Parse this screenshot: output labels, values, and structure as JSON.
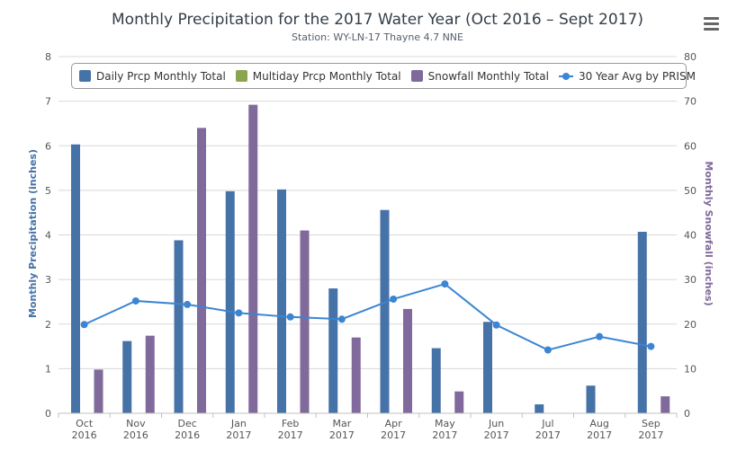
{
  "header": {
    "title": "Monthly Precipitation for the 2017 Water Year (Oct 2016 – Sept 2017)",
    "subtitle": "Station: WY-LN-17 Thayne 4.7 NNE",
    "menu_icon": "hamburger-menu-icon"
  },
  "colors": {
    "daily": "#4572a7",
    "multiday": "#89a54e",
    "snowfall": "#80699b",
    "avg": "#3b85d3",
    "left_axis_title": "#4572a7",
    "right_axis_title": "#80699b",
    "grid": "#d8d8d8"
  },
  "chart_data": {
    "type": "bar",
    "title": "Monthly Precipitation for the 2017 Water Year (Oct 2016 – Sept 2017)",
    "subtitle": "Station: WY-LN-17 Thayne 4.7 NNE",
    "categories": [
      [
        "Oct",
        "2016"
      ],
      [
        "Nov",
        "2016"
      ],
      [
        "Dec",
        "2016"
      ],
      [
        "Jan",
        "2017"
      ],
      [
        "Feb",
        "2017"
      ],
      [
        "Mar",
        "2017"
      ],
      [
        "Apr",
        "2017"
      ],
      [
        "May",
        "2017"
      ],
      [
        "Jun",
        "2017"
      ],
      [
        "Jul",
        "2017"
      ],
      [
        "Aug",
        "2017"
      ],
      [
        "Sep",
        "2017"
      ]
    ],
    "ylabel": "Monthly Precipitation (inches)",
    "ylim": [
      0,
      8
    ],
    "yticks": [
      0,
      1,
      2,
      3,
      4,
      5,
      6,
      7,
      8
    ],
    "y2label": "Monthly Snowfall (inches)",
    "y2lim": [
      0,
      80
    ],
    "y2ticks": [
      0,
      10,
      20,
      30,
      40,
      50,
      60,
      70,
      80
    ],
    "grid": true,
    "legend_position": "top",
    "series": [
      {
        "name": "Daily Prcp Monthly Total",
        "type": "bar",
        "axis": "left",
        "values": [
          6.03,
          1.62,
          3.88,
          4.98,
          5.02,
          2.8,
          4.56,
          1.46,
          2.05,
          0.2,
          0.62,
          4.07
        ]
      },
      {
        "name": "Multiday Prcp Monthly Total",
        "type": "bar",
        "axis": "left",
        "values": [
          0,
          0,
          0,
          0,
          0,
          0,
          0,
          0,
          0,
          0,
          0,
          0
        ]
      },
      {
        "name": "Snowfall Monthly Total",
        "type": "bar",
        "axis": "right",
        "values": [
          9.8,
          17.4,
          64,
          69.2,
          41,
          17,
          23.4,
          4.9,
          0,
          0,
          0,
          3.8
        ]
      },
      {
        "name": "30 Year Avg by PRISM",
        "type": "line",
        "axis": "left",
        "values": [
          1.99,
          2.52,
          2.44,
          2.25,
          2.16,
          2.11,
          2.56,
          2.9,
          1.98,
          1.42,
          1.72,
          1.5
        ]
      }
    ]
  }
}
